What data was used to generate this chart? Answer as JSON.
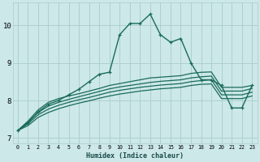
{
  "xlabel": "Humidex (Indice chaleur)",
  "bg_color": "#cce8e8",
  "grid_color": "#aacccc",
  "line_color": "#1a6b5a",
  "xlim": [
    -0.5,
    23.5
  ],
  "ylim": [
    6.85,
    10.6
  ],
  "yticks": [
    7,
    8,
    9,
    10
  ],
  "xticks": [
    0,
    1,
    2,
    3,
    4,
    5,
    6,
    7,
    8,
    9,
    10,
    11,
    12,
    13,
    14,
    15,
    16,
    17,
    18,
    19,
    20,
    21,
    22,
    23
  ],
  "series": [
    [
      7.2,
      7.4,
      7.7,
      7.9,
      8.0,
      8.15,
      8.3,
      8.5,
      8.7,
      8.75,
      9.75,
      10.05,
      10.05,
      10.3,
      9.75,
      9.55,
      9.65,
      9.0,
      8.55,
      8.55,
      8.4,
      7.8,
      7.8,
      8.4
    ],
    [
      7.2,
      7.45,
      7.75,
      7.95,
      8.05,
      8.12,
      8.18,
      8.25,
      8.32,
      8.4,
      8.45,
      8.5,
      8.55,
      8.6,
      8.62,
      8.64,
      8.66,
      8.72,
      8.75,
      8.76,
      8.35,
      8.35,
      8.35,
      8.4
    ],
    [
      7.2,
      7.42,
      7.68,
      7.85,
      7.95,
      8.03,
      8.1,
      8.17,
      8.24,
      8.31,
      8.36,
      8.4,
      8.44,
      8.48,
      8.51,
      8.53,
      8.55,
      8.6,
      8.63,
      8.65,
      8.25,
      8.25,
      8.25,
      8.32
    ],
    [
      7.2,
      7.38,
      7.62,
      7.77,
      7.87,
      7.95,
      8.02,
      8.08,
      8.15,
      8.22,
      8.27,
      8.31,
      8.35,
      8.38,
      8.41,
      8.43,
      8.45,
      8.5,
      8.53,
      8.55,
      8.15,
      8.15,
      8.15,
      8.22
    ],
    [
      7.2,
      7.33,
      7.55,
      7.68,
      7.78,
      7.86,
      7.93,
      7.99,
      8.06,
      8.12,
      8.17,
      8.21,
      8.25,
      8.28,
      8.31,
      8.33,
      8.35,
      8.4,
      8.43,
      8.44,
      8.05,
      8.05,
      8.05,
      8.12
    ]
  ]
}
